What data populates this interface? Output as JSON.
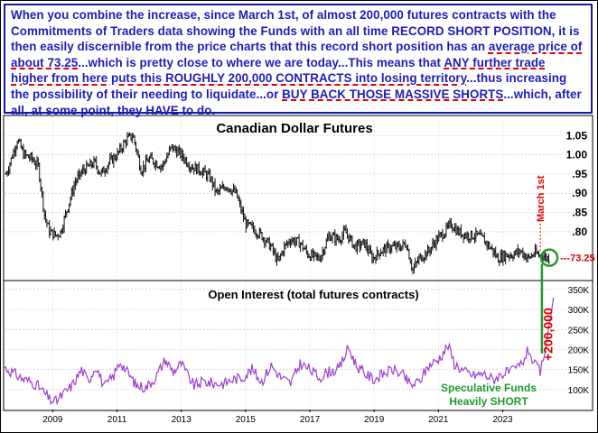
{
  "annotation": {
    "segments": [
      {
        "text": "When you combine the increase, since March 1st, of almost 200,000 futures contracts with the Commitments of Traders data showing the Funds with an all time RECORD SHORT POSITION, it is then easily discernible from the price charts that this record short position has an ",
        "hl": false
      },
      {
        "text": "average price of about 73.25",
        "hl": true
      },
      {
        "text": "...which is pretty close to where we are today...This means that ",
        "hl": false
      },
      {
        "text": "ANY further trade higher from here puts this ROUGHLY 200,000 CONTRACTS into losing territory",
        "hl": true
      },
      {
        "text": "...thus increasing the possibility of their needing to liquidate...or ",
        "hl": false
      },
      {
        "text": "BUY BACK THOSE MASSIVE SHORTS",
        "hl": true
      },
      {
        "text": "...which, after all, at some point, they HAVE to do.",
        "hl": false
      }
    ]
  },
  "colors": {
    "note_text": "#1d1db8",
    "note_border": "#1a1aa8",
    "highlight_underline": "#e00000",
    "price_bars": "#111111",
    "oi_line": "#9d3fd0",
    "annotation_red": "#e00000",
    "annotation_green": "#1f9a2f"
  },
  "callouts": {
    "march": "March 1st",
    "level": "---73.25",
    "oi_increase": "+200,000",
    "spec_line1": "Speculative Funds",
    "spec_line2": "Heavily SHORT"
  },
  "chart_data": [
    {
      "type": "ohlc",
      "title": "Canadian Dollar Futures",
      "y_ticks": [
        ".80",
        ".85",
        ".90",
        ".95",
        "1.00",
        "1.05"
      ],
      "x_ticks": [
        "2009",
        "2011",
        "2013",
        "2015",
        "2017",
        "2019",
        "2021",
        "2023"
      ],
      "x_range": [
        2007.5,
        2024.7
      ],
      "ylim": [
        0.68,
        1.1
      ],
      "markers": {
        "march_1st_date": 2024.17,
        "avg_price": 0.7325
      },
      "frequency": "monthly",
      "closes": [
        {
          "x": 2007.55,
          "y": 0.95
        },
        {
          "x": 2007.75,
          "y": 1.0
        },
        {
          "x": 2007.9,
          "y": 1.04
        },
        {
          "x": 2008.1,
          "y": 1.0
        },
        {
          "x": 2008.35,
          "y": 0.99
        },
        {
          "x": 2008.55,
          "y": 0.97
        },
        {
          "x": 2008.75,
          "y": 0.84
        },
        {
          "x": 2008.9,
          "y": 0.8
        },
        {
          "x": 2009.1,
          "y": 0.79
        },
        {
          "x": 2009.25,
          "y": 0.8
        },
        {
          "x": 2009.45,
          "y": 0.86
        },
        {
          "x": 2009.7,
          "y": 0.93
        },
        {
          "x": 2009.95,
          "y": 0.96
        },
        {
          "x": 2010.3,
          "y": 0.98
        },
        {
          "x": 2010.5,
          "y": 0.95
        },
        {
          "x": 2010.75,
          "y": 0.98
        },
        {
          "x": 2011.0,
          "y": 1.0
        },
        {
          "x": 2011.3,
          "y": 1.04
        },
        {
          "x": 2011.5,
          "y": 1.05
        },
        {
          "x": 2011.75,
          "y": 0.96
        },
        {
          "x": 2012.0,
          "y": 0.99
        },
        {
          "x": 2012.4,
          "y": 0.97
        },
        {
          "x": 2012.7,
          "y": 1.02
        },
        {
          "x": 2013.0,
          "y": 1.0
        },
        {
          "x": 2013.3,
          "y": 0.97
        },
        {
          "x": 2013.6,
          "y": 0.96
        },
        {
          "x": 2013.9,
          "y": 0.94
        },
        {
          "x": 2014.1,
          "y": 0.9
        },
        {
          "x": 2014.4,
          "y": 0.92
        },
        {
          "x": 2014.7,
          "y": 0.9
        },
        {
          "x": 2015.0,
          "y": 0.82
        },
        {
          "x": 2015.2,
          "y": 0.81
        },
        {
          "x": 2015.5,
          "y": 0.79
        },
        {
          "x": 2015.8,
          "y": 0.76
        },
        {
          "x": 2016.0,
          "y": 0.72
        },
        {
          "x": 2016.2,
          "y": 0.76
        },
        {
          "x": 2016.4,
          "y": 0.78
        },
        {
          "x": 2016.7,
          "y": 0.77
        },
        {
          "x": 2016.95,
          "y": 0.74
        },
        {
          "x": 2017.3,
          "y": 0.73
        },
        {
          "x": 2017.6,
          "y": 0.79
        },
        {
          "x": 2017.9,
          "y": 0.78
        },
        {
          "x": 2018.1,
          "y": 0.8
        },
        {
          "x": 2018.4,
          "y": 0.76
        },
        {
          "x": 2018.7,
          "y": 0.77
        },
        {
          "x": 2018.95,
          "y": 0.73
        },
        {
          "x": 2019.2,
          "y": 0.75
        },
        {
          "x": 2019.5,
          "y": 0.76
        },
        {
          "x": 2019.8,
          "y": 0.76
        },
        {
          "x": 2020.0,
          "y": 0.77
        },
        {
          "x": 2020.2,
          "y": 0.7
        },
        {
          "x": 2020.4,
          "y": 0.73
        },
        {
          "x": 2020.7,
          "y": 0.75
        },
        {
          "x": 2020.95,
          "y": 0.78
        },
        {
          "x": 2021.2,
          "y": 0.8
        },
        {
          "x": 2021.4,
          "y": 0.82
        },
        {
          "x": 2021.6,
          "y": 0.8
        },
        {
          "x": 2021.9,
          "y": 0.79
        },
        {
          "x": 2022.2,
          "y": 0.79
        },
        {
          "x": 2022.4,
          "y": 0.78
        },
        {
          "x": 2022.7,
          "y": 0.75
        },
        {
          "x": 2022.85,
          "y": 0.73
        },
        {
          "x": 2023.1,
          "y": 0.74
        },
        {
          "x": 2023.3,
          "y": 0.74
        },
        {
          "x": 2023.55,
          "y": 0.75
        },
        {
          "x": 2023.8,
          "y": 0.73
        },
        {
          "x": 2024.0,
          "y": 0.745
        },
        {
          "x": 2024.17,
          "y": 0.737
        },
        {
          "x": 2024.3,
          "y": 0.735
        },
        {
          "x": 2024.45,
          "y": 0.73
        }
      ]
    },
    {
      "type": "line",
      "title": "Open Interest (total futures contracts)",
      "y_ticks": [
        "100K",
        "150K",
        "200K",
        "250K",
        "300K",
        "350K"
      ],
      "x_ticks": [
        "2009",
        "2011",
        "2013",
        "2015",
        "2017",
        "2019",
        "2021",
        "2023"
      ],
      "x_range": [
        2007.5,
        2024.7
      ],
      "ylim": [
        50000,
        370000
      ],
      "series": [
        {
          "values": [
            {
              "x": 2007.5,
              "y": 155000
            },
            {
              "x": 2007.8,
              "y": 140000
            },
            {
              "x": 2008.1,
              "y": 125000
            },
            {
              "x": 2008.3,
              "y": 120000
            },
            {
              "x": 2008.5,
              "y": 112000
            },
            {
              "x": 2008.7,
              "y": 95000
            },
            {
              "x": 2008.9,
              "y": 75000
            },
            {
              "x": 2009.1,
              "y": 70000
            },
            {
              "x": 2009.35,
              "y": 90000
            },
            {
              "x": 2009.6,
              "y": 110000
            },
            {
              "x": 2009.9,
              "y": 150000
            },
            {
              "x": 2010.1,
              "y": 120000
            },
            {
              "x": 2010.35,
              "y": 160000
            },
            {
              "x": 2010.6,
              "y": 105000
            },
            {
              "x": 2010.9,
              "y": 135000
            },
            {
              "x": 2011.1,
              "y": 170000
            },
            {
              "x": 2011.35,
              "y": 140000
            },
            {
              "x": 2011.6,
              "y": 110000
            },
            {
              "x": 2011.9,
              "y": 105000
            },
            {
              "x": 2012.2,
              "y": 130000
            },
            {
              "x": 2012.5,
              "y": 175000
            },
            {
              "x": 2012.75,
              "y": 145000
            },
            {
              "x": 2013.0,
              "y": 165000
            },
            {
              "x": 2013.2,
              "y": 135000
            },
            {
              "x": 2013.4,
              "y": 110000
            },
            {
              "x": 2013.7,
              "y": 120000
            },
            {
              "x": 2014.0,
              "y": 115000
            },
            {
              "x": 2014.3,
              "y": 115000
            },
            {
              "x": 2014.6,
              "y": 125000
            },
            {
              "x": 2014.9,
              "y": 130000
            },
            {
              "x": 2015.2,
              "y": 150000
            },
            {
              "x": 2015.5,
              "y": 120000
            },
            {
              "x": 2015.8,
              "y": 160000
            },
            {
              "x": 2016.1,
              "y": 130000
            },
            {
              "x": 2016.4,
              "y": 115000
            },
            {
              "x": 2016.7,
              "y": 165000
            },
            {
              "x": 2017.0,
              "y": 150000
            },
            {
              "x": 2017.3,
              "y": 130000
            },
            {
              "x": 2017.6,
              "y": 145000
            },
            {
              "x": 2017.9,
              "y": 150000
            },
            {
              "x": 2018.2,
              "y": 205000
            },
            {
              "x": 2018.45,
              "y": 160000
            },
            {
              "x": 2018.7,
              "y": 140000
            },
            {
              "x": 2019.0,
              "y": 125000
            },
            {
              "x": 2019.3,
              "y": 140000
            },
            {
              "x": 2019.6,
              "y": 150000
            },
            {
              "x": 2019.9,
              "y": 135000
            },
            {
              "x": 2020.15,
              "y": 110000
            },
            {
              "x": 2020.4,
              "y": 120000
            },
            {
              "x": 2020.7,
              "y": 160000
            },
            {
              "x": 2021.0,
              "y": 175000
            },
            {
              "x": 2021.3,
              "y": 210000
            },
            {
              "x": 2021.5,
              "y": 165000
            },
            {
              "x": 2021.8,
              "y": 145000
            },
            {
              "x": 2022.1,
              "y": 135000
            },
            {
              "x": 2022.4,
              "y": 140000
            },
            {
              "x": 2022.7,
              "y": 125000
            },
            {
              "x": 2023.0,
              "y": 140000
            },
            {
              "x": 2023.3,
              "y": 145000
            },
            {
              "x": 2023.6,
              "y": 165000
            },
            {
              "x": 2023.8,
              "y": 200000
            },
            {
              "x": 2024.0,
              "y": 160000
            },
            {
              "x": 2024.17,
              "y": 145000
            },
            {
              "x": 2024.3,
              "y": 185000
            },
            {
              "x": 2024.4,
              "y": 240000
            },
            {
              "x": 2024.5,
              "y": 285000
            },
            {
              "x": 2024.58,
              "y": 330000
            }
          ]
        }
      ]
    }
  ]
}
